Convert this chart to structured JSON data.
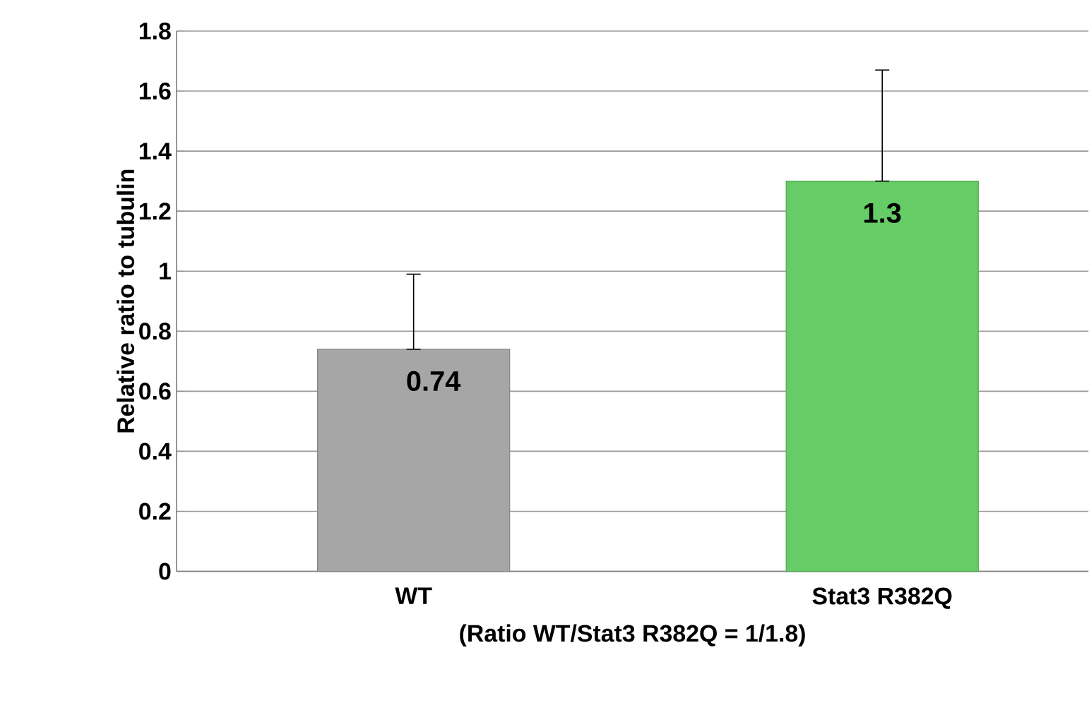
{
  "chart_data": {
    "type": "bar",
    "ylabel": "Relative ratio to tubulin",
    "xlabel": "(Ratio WT/Stat3 R382Q = 1/1.8)",
    "categories": [
      "WT",
      "Stat3 R382Q"
    ],
    "values": [
      0.74,
      1.3
    ],
    "colors": [
      "#a6a6a6",
      "#66cc66"
    ],
    "errors": [
      [
        0.74,
        0.99
      ],
      [
        1.3,
        1.67
      ]
    ],
    "ylim": [
      0,
      1.8
    ],
    "yticks": [
      0,
      0.2,
      0.4,
      0.6,
      0.8,
      1,
      1.2,
      1.4,
      1.6,
      1.8
    ],
    "grid": "y",
    "data_labels": true
  }
}
